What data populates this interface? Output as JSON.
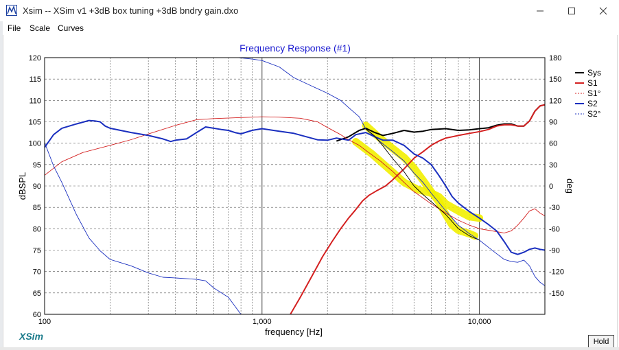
{
  "window": {
    "title": "Xsim -- XSim v1 +3dB box tuning +3dB bndry gain.dxo",
    "minimize_icon": "minimize-icon",
    "maximize_icon": "maximize-icon",
    "close_icon": "close-icon"
  },
  "menu": {
    "file": "File",
    "scale": "Scale",
    "curves": "Curves"
  },
  "logo_text": "XSim",
  "hold_label": "Hold",
  "chart_data": {
    "type": "line",
    "title": "Frequency Response (#1)",
    "xlabel": "frequency [Hz]",
    "ylabel": "dBSPL",
    "y2label": "deg",
    "xscale": "log",
    "xlim": [
      100,
      20000
    ],
    "ylim": [
      60,
      120
    ],
    "y2lim": [
      -180,
      180
    ],
    "x_tick_labels": [
      "100",
      "1,000",
      "10,000"
    ],
    "y_tick_labels": [
      "60",
      "65",
      "70",
      "75",
      "80",
      "85",
      "90",
      "95",
      "100",
      "105",
      "110",
      "115",
      "120"
    ],
    "y2_tick_labels": [
      "-150",
      "-120",
      "-90",
      "-60",
      "-30",
      "0",
      "30",
      "60",
      "90",
      "120",
      "150",
      "180"
    ],
    "grid": true,
    "legend_position": "right",
    "colors": {
      "title": "#1a1ad0",
      "sys": "#000000",
      "s1": "#d42020",
      "s2": "#1a2fbf",
      "highlight": "#f2f000"
    },
    "series": [
      {
        "name": "Sys",
        "axis": "left",
        "style": "thick",
        "color": "#000000",
        "points": [
          [
            2200,
            100.5
          ],
          [
            2500,
            101.5
          ],
          [
            2800,
            103
          ],
          [
            3000,
            103.5
          ],
          [
            3300,
            102.5
          ],
          [
            3600,
            101.8
          ],
          [
            4000,
            102.3
          ],
          [
            4500,
            103
          ],
          [
            5000,
            102.6
          ],
          [
            5500,
            102.8
          ],
          [
            6000,
            103.2
          ],
          [
            7000,
            103.4
          ],
          [
            8000,
            103
          ],
          [
            9000,
            103.1
          ],
          [
            10000,
            103.4
          ],
          [
            11000,
            103.6
          ],
          [
            12000,
            104.2
          ],
          [
            13000,
            104.5
          ],
          [
            14000,
            104.5
          ],
          [
            15000,
            104
          ],
          [
            16000,
            104
          ],
          [
            17000,
            105.2
          ],
          [
            18000,
            107.5
          ],
          [
            19000,
            108.7
          ],
          [
            20000,
            109
          ]
        ]
      },
      {
        "name": "S1",
        "axis": "left",
        "style": "thick",
        "color": "#d42020",
        "points": [
          [
            1350,
            60
          ],
          [
            1500,
            64
          ],
          [
            1700,
            69
          ],
          [
            1900,
            73.5
          ],
          [
            2100,
            77
          ],
          [
            2300,
            80
          ],
          [
            2500,
            82.5
          ],
          [
            2700,
            84.5
          ],
          [
            2900,
            86.5
          ],
          [
            3100,
            87.8
          ],
          [
            3400,
            89
          ],
          [
            3700,
            90
          ],
          [
            4000,
            91.5
          ],
          [
            4500,
            94
          ],
          [
            5000,
            96.5
          ],
          [
            5500,
            98
          ],
          [
            6000,
            99.5
          ],
          [
            6500,
            100.5
          ],
          [
            7000,
            101.2
          ],
          [
            7500,
            101.5
          ],
          [
            8000,
            101.8
          ],
          [
            9000,
            102.3
          ],
          [
            10000,
            102.7
          ],
          [
            11000,
            103.2
          ],
          [
            12000,
            104
          ],
          [
            13000,
            104.3
          ],
          [
            14000,
            104.3
          ],
          [
            15000,
            104
          ],
          [
            16000,
            104
          ],
          [
            17000,
            105.2
          ],
          [
            18000,
            107.5
          ],
          [
            19000,
            108.7
          ],
          [
            20000,
            109
          ]
        ]
      },
      {
        "name": "S1°",
        "axis": "right",
        "style": "thin",
        "color": "#d42020",
        "points": [
          [
            100,
            15
          ],
          [
            120,
            34
          ],
          [
            150,
            47
          ],
          [
            200,
            57
          ],
          [
            250,
            65
          ],
          [
            300,
            73
          ],
          [
            400,
            85
          ],
          [
            500,
            93
          ],
          [
            600,
            94.5
          ],
          [
            800,
            96
          ],
          [
            1000,
            97
          ],
          [
            1200,
            96.5
          ],
          [
            1500,
            95
          ],
          [
            1800,
            90
          ],
          [
            2000,
            82
          ],
          [
            2300,
            72
          ],
          [
            2500,
            65
          ],
          [
            2800,
            57
          ],
          [
            3000,
            50
          ],
          [
            3500,
            35
          ],
          [
            4000,
            20
          ],
          [
            4500,
            5
          ],
          [
            5000,
            -8
          ],
          [
            6000,
            -25
          ],
          [
            7000,
            -38
          ],
          [
            8000,
            -48
          ],
          [
            9000,
            -55
          ],
          [
            10000,
            -60
          ],
          [
            12000,
            -64
          ],
          [
            13000,
            -66
          ],
          [
            14000,
            -63
          ],
          [
            15000,
            -55
          ],
          [
            16000,
            -45
          ],
          [
            17000,
            -35
          ],
          [
            18000,
            -32
          ],
          [
            19000,
            -38
          ],
          [
            20000,
            -42
          ]
        ]
      },
      {
        "name": "S2",
        "axis": "left",
        "style": "thick",
        "color": "#1a2fbf",
        "points": [
          [
            100,
            99
          ],
          [
            110,
            102
          ],
          [
            120,
            103.5
          ],
          [
            140,
            104.5
          ],
          [
            160,
            105.3
          ],
          [
            170,
            105.2
          ],
          [
            180,
            105
          ],
          [
            190,
            104
          ],
          [
            200,
            103.5
          ],
          [
            250,
            102.5
          ],
          [
            300,
            101.8
          ],
          [
            350,
            101
          ],
          [
            380,
            100.4
          ],
          [
            400,
            100.7
          ],
          [
            450,
            101
          ],
          [
            500,
            102.5
          ],
          [
            550,
            103.8
          ],
          [
            600,
            103.5
          ],
          [
            650,
            103.2
          ],
          [
            700,
            103
          ],
          [
            750,
            102.5
          ],
          [
            800,
            102.2
          ],
          [
            900,
            103
          ],
          [
            1000,
            103.4
          ],
          [
            1200,
            102.8
          ],
          [
            1400,
            102.3
          ],
          [
            1600,
            101.5
          ],
          [
            1800,
            100.8
          ],
          [
            2000,
            100.7
          ],
          [
            2200,
            101.2
          ],
          [
            2500,
            100.7
          ],
          [
            2700,
            102
          ],
          [
            3000,
            102.5
          ],
          [
            3300,
            101.5
          ],
          [
            3600,
            100.7
          ],
          [
            4000,
            100.7
          ],
          [
            4500,
            99.5
          ],
          [
            5000,
            97.5
          ],
          [
            5500,
            96.5
          ],
          [
            6000,
            95
          ],
          [
            6500,
            92.5
          ],
          [
            7000,
            90
          ],
          [
            7500,
            87.5
          ],
          [
            8000,
            86
          ],
          [
            9000,
            84
          ],
          [
            10000,
            82.5
          ],
          [
            11000,
            81
          ],
          [
            12000,
            79.5
          ],
          [
            13000,
            77
          ],
          [
            14000,
            74.5
          ],
          [
            15000,
            74
          ],
          [
            16000,
            74.5
          ],
          [
            17000,
            75.2
          ],
          [
            18000,
            75.5
          ],
          [
            19000,
            75.2
          ],
          [
            20000,
            75
          ]
        ]
      },
      {
        "name": "S2°",
        "axis": "right",
        "style": "thin",
        "color": "#1a2fbf",
        "points": [
          [
            100,
            61
          ],
          [
            110,
            28
          ],
          [
            120,
            5
          ],
          [
            140,
            -40
          ],
          [
            160,
            -73
          ],
          [
            180,
            -91
          ],
          [
            200,
            -103
          ],
          [
            250,
            -112
          ],
          [
            300,
            -122
          ],
          [
            350,
            -128
          ],
          [
            400,
            -129
          ],
          [
            450,
            -130
          ],
          [
            500,
            -131
          ],
          [
            550,
            -133
          ],
          [
            600,
            -143
          ],
          [
            700,
            -156
          ],
          [
            800,
            -180
          ]
        ]
      },
      {
        "name": "S2° (wrapped)",
        "axis": "right",
        "style": "thin",
        "color": "#1a2fbf",
        "points": [
          [
            780,
            180
          ],
          [
            900,
            178
          ],
          [
            1000,
            176
          ],
          [
            1200,
            167
          ],
          [
            1400,
            152
          ],
          [
            1700,
            140
          ],
          [
            2000,
            130
          ],
          [
            2300,
            120
          ],
          [
            2500,
            110
          ],
          [
            2800,
            97
          ],
          [
            3000,
            80
          ],
          [
            3500,
            62
          ],
          [
            4000,
            48
          ],
          [
            4500,
            35
          ],
          [
            5000,
            18
          ],
          [
            5500,
            5
          ],
          [
            6000,
            -10
          ],
          [
            7000,
            -35
          ],
          [
            8000,
            -55
          ],
          [
            9000,
            -67
          ],
          [
            10000,
            -76
          ],
          [
            11000,
            -86
          ],
          [
            12000,
            -95
          ],
          [
            13000,
            -103
          ],
          [
            14000,
            -106
          ],
          [
            15000,
            -107
          ],
          [
            16000,
            -104
          ],
          [
            17000,
            -112
          ],
          [
            18000,
            -127
          ],
          [
            19000,
            -135
          ],
          [
            20000,
            -140
          ]
        ]
      },
      {
        "name": "Sys phase",
        "axis": "right",
        "style": "thin",
        "color": "#000000",
        "points": [
          [
            3000,
            80
          ],
          [
            3300,
            70
          ],
          [
            3600,
            56
          ],
          [
            4000,
            38
          ],
          [
            4500,
            20
          ],
          [
            5000,
            0
          ],
          [
            5500,
            -12
          ],
          [
            6000,
            -22
          ],
          [
            7000,
            -40
          ],
          [
            8000,
            -60
          ],
          [
            9000,
            -70
          ],
          [
            10000,
            -76
          ]
        ]
      }
    ],
    "highlights": [
      {
        "axis": "right",
        "points": [
          [
            2700,
            62
          ],
          [
            3200,
            45
          ],
          [
            3800,
            25
          ],
          [
            4500,
            5
          ],
          [
            5200,
            -5
          ],
          [
            6000,
            -10
          ],
          [
            6500,
            -15
          ],
          [
            7000,
            -25
          ],
          [
            8000,
            -35
          ],
          [
            9000,
            -43
          ],
          [
            10000,
            -45
          ]
        ]
      },
      {
        "axis": "right",
        "points": [
          [
            3000,
            85
          ],
          [
            3400,
            70
          ],
          [
            3900,
            55
          ],
          [
            4500,
            40
          ],
          [
            5000,
            25
          ],
          [
            5500,
            8
          ],
          [
            6000,
            -8
          ],
          [
            6500,
            -22
          ],
          [
            7000,
            -40
          ],
          [
            7500,
            -55
          ],
          [
            8000,
            -62
          ],
          [
            9000,
            -67
          ],
          [
            9500,
            -70
          ]
        ]
      }
    ]
  }
}
